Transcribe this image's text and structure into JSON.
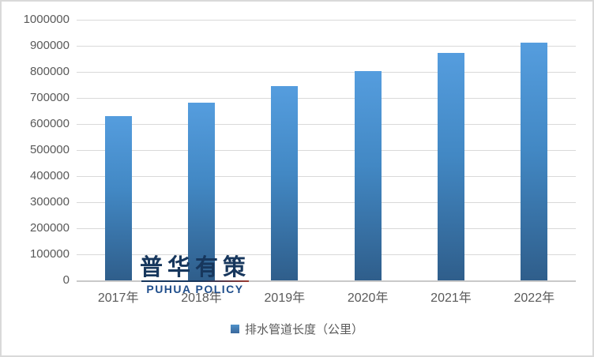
{
  "chart_data": {
    "type": "bar",
    "title": "",
    "categories": [
      "2017年",
      "2018年",
      "2019年",
      "2020年",
      "2021年",
      "2022年"
    ],
    "series": [
      {
        "name": "排水管道长度（公里）",
        "values": [
          630000,
          683000,
          744000,
          802000,
          872000,
          913000
        ]
      }
    ],
    "xlabel": "",
    "ylabel": "",
    "ylim": [
      0,
      1000000
    ],
    "ytick_step": 100000,
    "ytick_labels_top_to_bottom": [
      "1000000",
      "900000",
      "800000",
      "700000",
      "600000",
      "500000",
      "400000",
      "300000",
      "200000",
      "100000",
      "0"
    ],
    "grid": true,
    "legend_position": "bottom"
  },
  "legend": {
    "marker": "square-icon",
    "label": "排水管道长度（公里）"
  },
  "watermark": {
    "cn": "普华有策",
    "en": "PUHUA POLICY"
  },
  "colors": {
    "bar_gradient_top": "#559dde",
    "bar_gradient_bottom": "#2f5e8b",
    "gridline": "#d9d9d9",
    "axis_line": "#c9c9c9",
    "tick_label": "#595959",
    "legend_text": "#595959",
    "watermark_cn": "#17375d",
    "watermark_en": "#1f4e8c",
    "watermark_rule_accent": "#9c3a31",
    "background": "#ffffff",
    "frame_border": "#d9d9d9"
  }
}
